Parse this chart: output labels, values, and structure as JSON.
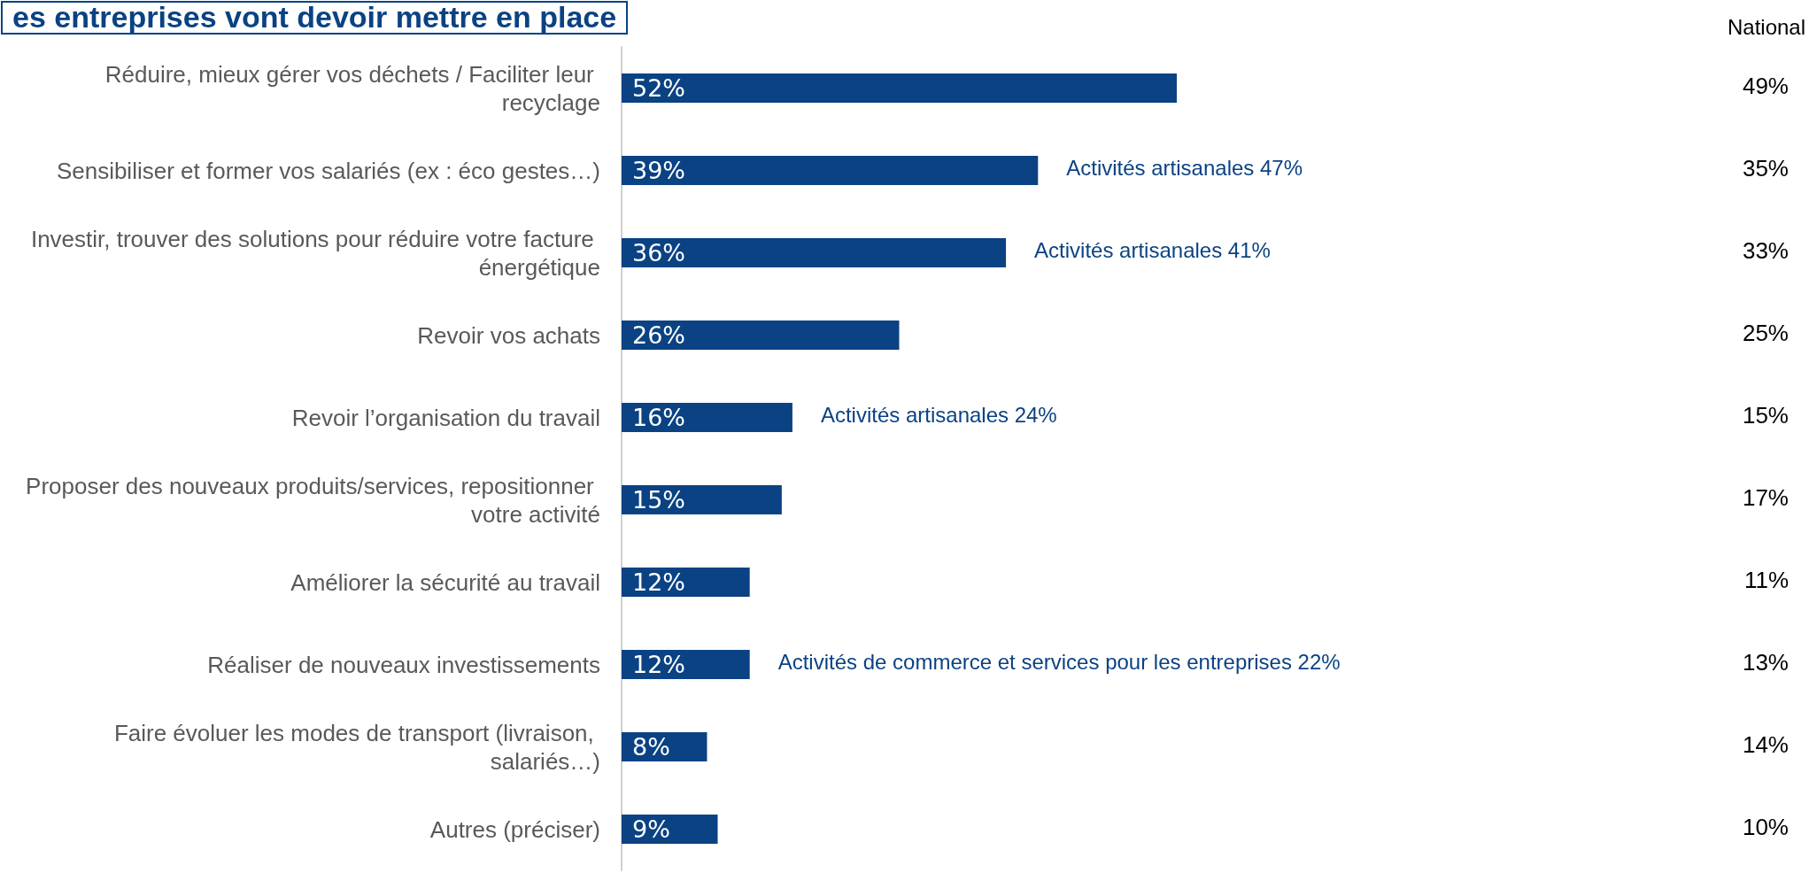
{
  "chart_data": {
    "type": "bar",
    "orientation": "horizontal",
    "title": "es entreprises vont devoir mettre en place",
    "categories": [
      "Réduire, mieux gérer vos déchets / Faciliter leur recyclage",
      "Sensibiliser et former vos salariés (ex : éco gestes…)",
      "Investir, trouver des solutions pour réduire votre facture énergétique",
      "Revoir vos achats",
      "Revoir l’organisation du travail",
      "Proposer des nouveaux produits/services, repositionner votre activité",
      "Améliorer la sécurité au travail",
      "Réaliser de nouveaux investissements",
      "Faire évoluer les modes de transport (livraison, salariés…)",
      "Autres (préciser)"
    ],
    "values": [
      52,
      39,
      36,
      26,
      16,
      15,
      12,
      12,
      8,
      9
    ],
    "value_labels": [
      "52%",
      "39%",
      "36%",
      "26%",
      "16%",
      "15%",
      "12%",
      "12%",
      "8%",
      "9%"
    ],
    "color": "#0a4283",
    "annotations": [
      "National",
      {
        "text": "Activités artisanales 47%",
        "x": 39,
        "y": "Sensibiliser et former vos salariés (ex : éco gestes…)"
      },
      {
        "text": "Activités artisanales 41%",
        "x": 36,
        "y": "Investir, trouver des solutions pour réduire votre facture énergétique"
      },
      {
        "text": "Activités artisanales 24%",
        "x": 16,
        "y": "Revoir l’organisation du travail"
      },
      {
        "text": "Activités de commerce et services pour les entreprises 22%",
        "x": 12,
        "y": "Réaliser de nouveaux investissements"
      },
      "49%",
      "35%",
      "33%",
      "25%",
      "15%",
      "17%",
      "11%",
      "13%",
      "14%",
      "10%"
    ],
    "grid": false
  }
}
